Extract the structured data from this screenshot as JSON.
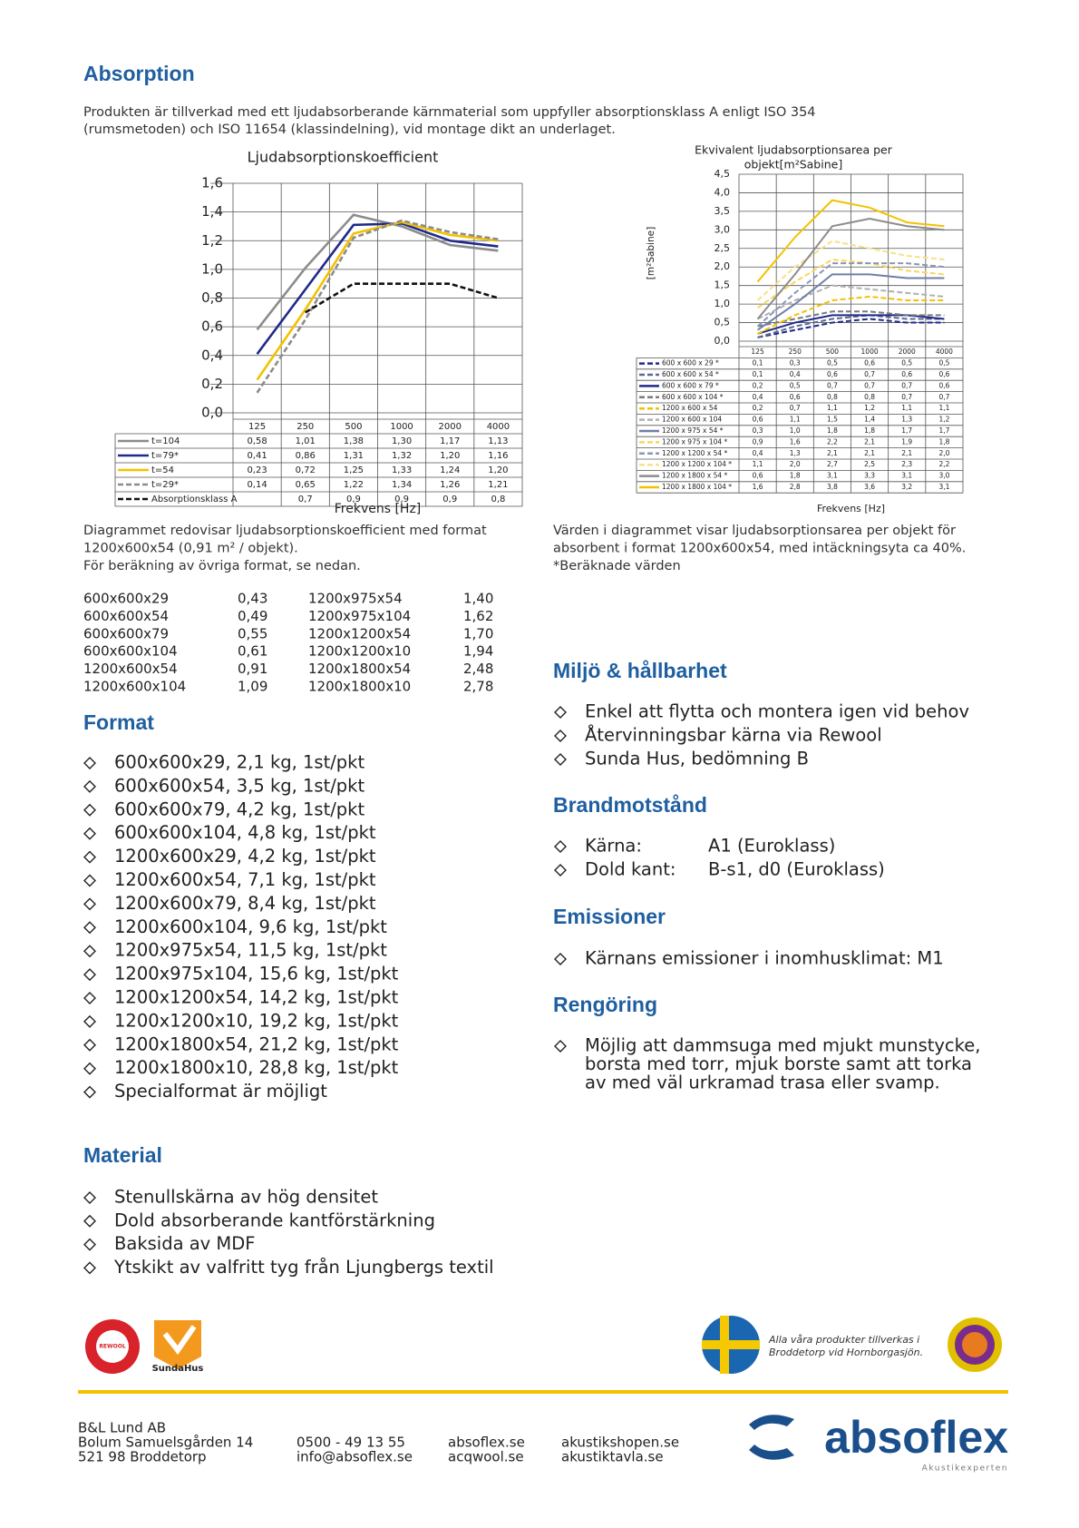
{
  "heading": "Absorption",
  "intro": [
    "Produkten är tillverkad med ett ljudabsorberande kärnmaterial som uppfyller absorptionsklass A enligt ISO 354",
    "(rumsmetoden) och ISO 11654 (klassindelning), vid montage dikt an underlaget."
  ],
  "chart_data": [
    {
      "type": "line",
      "title": "Ljudabsorptionskoefficient",
      "x_label": "Frekvens [Hz]",
      "categories": [
        "125",
        "250",
        "500",
        "1000",
        "2000",
        "4000"
      ],
      "ylim": [
        0,
        1.6
      ],
      "yticks": [
        {
          "value": 0,
          "label": "0,0"
        },
        {
          "value": 0.2,
          "label": "0,2"
        },
        {
          "value": 0.4,
          "label": "0,4"
        },
        {
          "value": 0.6,
          "label": "0,6"
        },
        {
          "value": 0.8,
          "label": "0,8"
        },
        {
          "value": 1,
          "label": "1,0"
        },
        {
          "value": 1.2,
          "label": "1,2"
        },
        {
          "value": 1.4,
          "label": "1,4"
        },
        {
          "value": 1.6,
          "label": "1,6"
        }
      ],
      "grid": true,
      "series": [
        {
          "name": "t=104",
          "color": "#8c8c8c",
          "dashed": false,
          "values": [
            0.58,
            1.01,
            1.38,
            1.3,
            1.17,
            1.13
          ],
          "value_labels": [
            "0,58",
            "1,01",
            "1,38",
            "1,30",
            "1,17",
            "1,13"
          ]
        },
        {
          "name": "t=79*",
          "color": "#1f2a8c",
          "dashed": false,
          "values": [
            0.41,
            0.86,
            1.31,
            1.32,
            1.2,
            1.16
          ],
          "value_labels": [
            "0,41",
            "0,86",
            "1,31",
            "1,32",
            "1,20",
            "1,16"
          ]
        },
        {
          "name": "t=54",
          "color": "#f2c200",
          "dashed": false,
          "values": [
            0.23,
            0.72,
            1.25,
            1.33,
            1.24,
            1.2
          ],
          "value_labels": [
            "0,23",
            "0,72",
            "1,25",
            "1,33",
            "1,24",
            "1,20"
          ]
        },
        {
          "name": "t=29*",
          "color": "#8c8c8c",
          "dashed": true,
          "values": [
            0.14,
            0.65,
            1.22,
            1.34,
            1.26,
            1.21
          ],
          "value_labels": [
            "0,14",
            "0,65",
            "1,22",
            "1,34",
            "1,26",
            "1,21"
          ]
        },
        {
          "name": "Absorptionsklass A",
          "color": "#111111",
          "dashed": true,
          "values": [
            null,
            0.7,
            0.9,
            0.9,
            0.9,
            0.8
          ],
          "value_labels": [
            null,
            "0,7",
            "0,9",
            "0,9",
            "0,9",
            "0,8"
          ]
        }
      ]
    },
    {
      "type": "line",
      "title": [
        "Ekvivalent ljudabsorptionsarea per",
        "objekt[m²Sabine]"
      ],
      "x_label": "Frekvens [Hz]",
      "y_label": "[m²Sabine]",
      "categories": [
        "125",
        "250",
        "500",
        "1000",
        "2000",
        "4000"
      ],
      "ylim": [
        0,
        4.5
      ],
      "yticks": [
        {
          "value": 0,
          "label": "0,0"
        },
        {
          "value": 0.5,
          "label": "0,5"
        },
        {
          "value": 1,
          "label": "1,0"
        },
        {
          "value": 1.5,
          "label": "1,5"
        },
        {
          "value": 2,
          "label": "2,0"
        },
        {
          "value": 2.5,
          "label": "2,5"
        },
        {
          "value": 3,
          "label": "3,0"
        },
        {
          "value": 3.5,
          "label": "3,5"
        },
        {
          "value": 4,
          "label": "4,0"
        },
        {
          "value": 4.5,
          "label": "4,5"
        }
      ],
      "grid": true,
      "series": [
        {
          "name": "600 x 600 x 29 *",
          "color": "#1f2a8c",
          "dashed": true,
          "values": [
            0.1,
            0.3,
            0.5,
            0.6,
            0.5,
            0.5
          ],
          "value_labels": [
            "0,1",
            "0,3",
            "0,5",
            "0,6",
            "0,5",
            "0,5"
          ]
        },
        {
          "name": "600 x 600 x 54 *",
          "color": "#5b6b8c",
          "dashed": true,
          "values": [
            0.1,
            0.4,
            0.6,
            0.7,
            0.6,
            0.6
          ],
          "value_labels": [
            "0,1",
            "0,4",
            "0,6",
            "0,7",
            "0,6",
            "0,6"
          ]
        },
        {
          "name": "600 x 600 x 79 *",
          "color": "#1f2a8c",
          "dashed": false,
          "values": [
            0.2,
            0.5,
            0.7,
            0.7,
            0.7,
            0.6
          ],
          "value_labels": [
            "0,2",
            "0,5",
            "0,7",
            "0,7",
            "0,7",
            "0,6"
          ]
        },
        {
          "name": "600 x 600 x 104 *",
          "color": "#7a7a7a",
          "dashed": true,
          "values": [
            0.4,
            0.6,
            0.8,
            0.8,
            0.7,
            0.7
          ],
          "value_labels": [
            "0,4",
            "0,6",
            "0,8",
            "0,8",
            "0,7",
            "0,7"
          ]
        },
        {
          "name": "1200 x 600 x 54",
          "color": "#f2c200",
          "dashed": true,
          "values": [
            0.2,
            0.7,
            1.1,
            1.2,
            1.1,
            1.1
          ],
          "value_labels": [
            "0,2",
            "0,7",
            "1,1",
            "1,2",
            "1,1",
            "1,1"
          ]
        },
        {
          "name": "1200 x 600 x 104",
          "color": "#b0b0b0",
          "dashed": true,
          "values": [
            0.6,
            1.1,
            1.5,
            1.4,
            1.3,
            1.2
          ],
          "value_labels": [
            "0,6",
            "1,1",
            "1,5",
            "1,4",
            "1,3",
            "1,2"
          ]
        },
        {
          "name": "1200 x 975 x 54 *",
          "color": "#6f7fa8",
          "dashed": false,
          "values": [
            0.3,
            1.0,
            1.8,
            1.8,
            1.7,
            1.7
          ],
          "value_labels": [
            "0,3",
            "1,0",
            "1,8",
            "1,8",
            "1,7",
            "1,7"
          ]
        },
        {
          "name": "1200 x 975 x 104 *",
          "color": "#f7d65a",
          "dashed": true,
          "values": [
            0.9,
            1.6,
            2.2,
            2.1,
            1.9,
            1.8
          ],
          "value_labels": [
            "0,9",
            "1,6",
            "2,2",
            "2,1",
            "1,9",
            "1,8"
          ]
        },
        {
          "name": "1200 x 1200 x 54 *",
          "color": "#8a96b8",
          "dashed": true,
          "values": [
            0.4,
            1.3,
            2.1,
            2.1,
            2.1,
            2.0
          ],
          "value_labels": [
            "0,4",
            "1,3",
            "2,1",
            "2,1",
            "2,1",
            "2,0"
          ]
        },
        {
          "name": "1200 x 1200 x 104 *",
          "color": "#f7e08a",
          "dashed": true,
          "values": [
            1.1,
            2.0,
            2.7,
            2.5,
            2.3,
            2.2
          ],
          "value_labels": [
            "1,1",
            "2,0",
            "2,7",
            "2,5",
            "2,3",
            "2,2"
          ]
        },
        {
          "name": "1200 x 1800 x 54 *",
          "color": "#8c8c8c",
          "dashed": false,
          "values": [
            0.6,
            1.8,
            3.1,
            3.3,
            3.1,
            3.0
          ],
          "value_labels": [
            "0,6",
            "1,8",
            "3,1",
            "3,3",
            "3,1",
            "3,0"
          ]
        },
        {
          "name": "1200 x 1800 x 104 *",
          "color": "#f2c200",
          "dashed": false,
          "values": [
            1.6,
            2.8,
            3.8,
            3.6,
            3.2,
            3.1
          ],
          "value_labels": [
            "1,6",
            "2,8",
            "3,8",
            "3,6",
            "3,2",
            "3,1"
          ]
        }
      ]
    }
  ],
  "caption_left": [
    "Diagrammet redovisar ljudabsorptionskoefficient med format",
    "1200x600x54 (0,91 m² / objekt).",
    "För beräkning av övriga format, se nedan."
  ],
  "caption_right": [
    "Värden i diagrammet visar ljudabsorptionsarea per objekt för",
    "absorbent i format 1200x600x54, med intäckningsyta ca 40%.",
    "*Beräknade värden"
  ],
  "format_table": {
    "rows": [
      [
        "600x600x29",
        "0,43",
        "1200x975x54",
        "1,40"
      ],
      [
        "600x600x54",
        "0,49",
        "1200x975x104",
        "1,62"
      ],
      [
        "600x600x79",
        "0,55",
        "1200x1200x54",
        "1,70"
      ],
      [
        "600x600x104",
        "0,61",
        "1200x1200x10",
        "1,94"
      ],
      [
        "1200x600x54",
        "0,91",
        "1200x1800x54",
        "2,48"
      ],
      [
        "1200x600x104",
        "1,09",
        "1200x1800x10",
        "2,78"
      ]
    ]
  },
  "format": {
    "title": "Format",
    "items": [
      "600x600x29, 2,1 kg, 1st/pkt",
      "600x600x54, 3,5 kg, 1st/pkt",
      "600x600x79, 4,2 kg, 1st/pkt",
      "600x600x104, 4,8 kg, 1st/pkt",
      "1200x600x29, 4,2 kg, 1st/pkt",
      "1200x600x54, 7,1 kg, 1st/pkt",
      "1200x600x79, 8,4 kg, 1st/pkt",
      "1200x600x104, 9,6 kg, 1st/pkt",
      "1200x975x54, 11,5 kg, 1st/pkt",
      "1200x975x104, 15,6 kg, 1st/pkt",
      "1200x1200x54, 14,2 kg, 1st/pkt",
      "1200x1200x10, 19,2 kg, 1st/pkt",
      "1200x1800x54, 21,2 kg, 1st/pkt",
      "1200x1800x10, 28,8 kg, 1st/pkt",
      "Specialformat är möjligt"
    ]
  },
  "material": {
    "title": "Material",
    "items": [
      "Stenullskärna av hög densitet",
      "Dold absorberande kantförstärkning",
      "Baksida av MDF",
      "Ytskikt av valfritt tyg från Ljungbergs textil"
    ]
  },
  "miljo": {
    "title": "Miljö & hållbarhet",
    "items": [
      "Enkel att flytta och montera igen vid behov",
      "Återvinningsbar kärna via Rewool",
      "Sunda Hus, bedömning B"
    ]
  },
  "brand": {
    "title": "Brandmotstånd",
    "rows": [
      [
        "Kärna:",
        "A1 (Euroklass)"
      ],
      [
        "Dold kant:",
        "B-s1, d0 (Euroklass)"
      ]
    ]
  },
  "emissioner": {
    "title": "Emissioner",
    "items": [
      "Kärnans emissioner i inomhusklimat: M1"
    ]
  },
  "rengoring": {
    "title": "Rengöring",
    "lines": [
      "Möjlig att dammsuga med mjukt munstycke,",
      "borsta med torr, mjuk borste samt att torka",
      "av med väl urkramad trasa eller svamp."
    ]
  },
  "logos": {
    "rewool": "REWOOL",
    "sundahus": "SundaHus",
    "note": [
      "Alla våra produkter tillverkas i",
      "Broddetorp vid Hornborgasjön."
    ]
  },
  "footer": {
    "address": [
      "B&L Lund AB",
      "Bolum Samuelsgården 14",
      "521 98 Broddetorp"
    ],
    "contact": [
      "0500 - 49 13 55",
      "info@absoflex.se"
    ],
    "web1": [
      "absoflex.se",
      "acqwool.se"
    ],
    "web2": [
      "akustikshopen.se",
      "akustiktavla.se"
    ],
    "brand": "absoflex",
    "tagline": "Akustikexperten"
  }
}
